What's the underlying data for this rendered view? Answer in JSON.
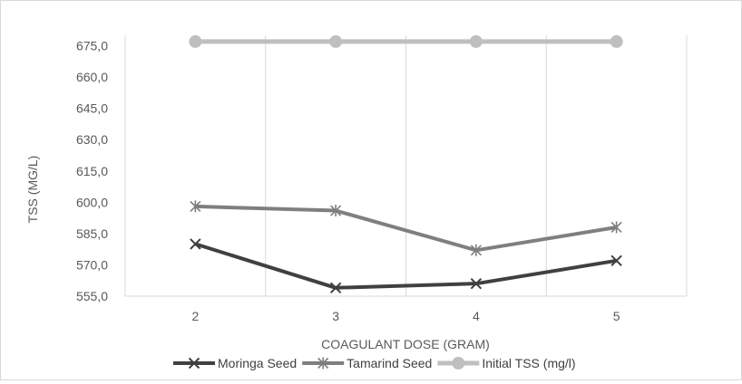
{
  "chart_data": {
    "type": "line",
    "categories": [
      "2",
      "3",
      "4",
      "5"
    ],
    "xlabel": "COAGULANT DOSE (GRAM)",
    "ylabel": "TSS (MG/L)",
    "ylim": [
      555,
      680
    ],
    "yticks": [
      "555,0",
      "570,0",
      "585,0",
      "600,0",
      "615,0",
      "630,0",
      "645,0",
      "660,0",
      "675,0"
    ],
    "ytick_values": [
      555,
      570,
      585,
      600,
      615,
      630,
      645,
      660,
      675
    ],
    "grid": "vertical",
    "legend_position": "bottom",
    "series": [
      {
        "name": "Moringa Seed",
        "values": [
          580,
          559,
          561,
          572
        ],
        "color": "#404040",
        "marker": "x-mark"
      },
      {
        "name": "Tamarind Seed",
        "values": [
          598,
          596,
          577,
          588
        ],
        "color": "#7f7f7f",
        "marker": "asterisk"
      },
      {
        "name": "Initial TSS (mg/l)",
        "values": [
          677,
          677,
          677,
          677
        ],
        "color": "#bfbfbf",
        "marker": "circle"
      }
    ]
  }
}
